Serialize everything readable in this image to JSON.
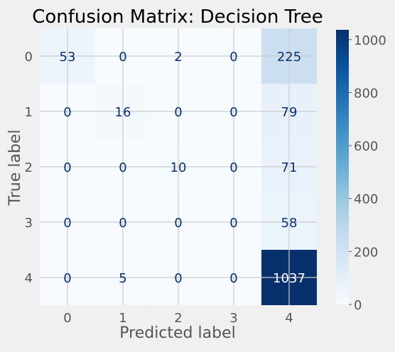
{
  "chart_data": {
    "type": "heatmap",
    "title": "Confusion Matrix: Decision Tree",
    "xlabel": "Predicted label",
    "ylabel": "True label",
    "x_categories": [
      "0",
      "1",
      "2",
      "3",
      "4"
    ],
    "y_categories": [
      "0",
      "1",
      "2",
      "3",
      "4"
    ],
    "values": [
      [
        53,
        0,
        2,
        0,
        225
      ],
      [
        0,
        16,
        0,
        0,
        79
      ],
      [
        0,
        0,
        10,
        0,
        71
      ],
      [
        0,
        0,
        0,
        0,
        58
      ],
      [
        0,
        5,
        0,
        0,
        1037
      ]
    ],
    "colormap": "Blues",
    "colorbar": {
      "min": 0,
      "max": 1037,
      "ticks": [
        0,
        200,
        400,
        600,
        800,
        1000
      ],
      "tick_labels": [
        "0",
        "200",
        "400",
        "600",
        "800",
        "1000"
      ]
    },
    "grid": true,
    "colors": {
      "background": "#f0f0f0",
      "text": "#555555",
      "grid": "#cbcbcb",
      "cell_text_dark": "#08306b",
      "cell_text_light": "#ffffff"
    }
  }
}
